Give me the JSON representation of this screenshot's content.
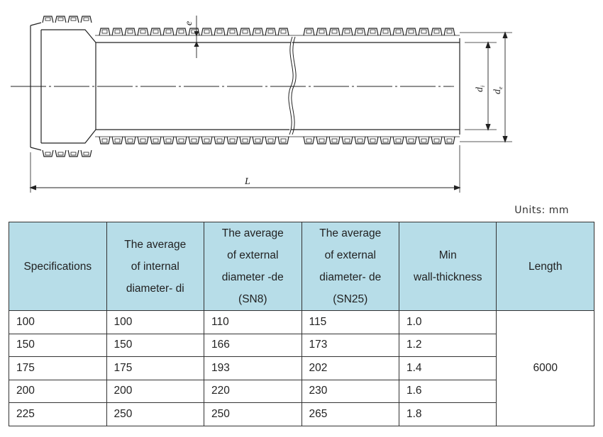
{
  "drawing": {
    "labels": {
      "wall": "e",
      "inner": "d",
      "inner_sub": "i",
      "outer": "d",
      "outer_sub": "e",
      "length": "L"
    }
  },
  "units": "Units: mm",
  "table": {
    "headers": [
      "Specifications",
      [
        "The average",
        "of internal",
        "diameter- di"
      ],
      [
        "The average",
        "of external",
        "diameter -de",
        "(SN8)"
      ],
      [
        "The average",
        "of external",
        "diameter- de",
        "(SN25)"
      ],
      [
        "Min",
        "wall-thickness"
      ],
      "Length"
    ],
    "rows": [
      [
        "100",
        "100",
        "110",
        "115",
        "1.0"
      ],
      [
        "150",
        "150",
        "166",
        "173",
        "1.2"
      ],
      [
        "175",
        "175",
        "193",
        "202",
        "1.4"
      ],
      [
        "200",
        "200",
        "220",
        "230",
        "1.6"
      ],
      [
        "225",
        "250",
        "250",
        "265",
        "1.8"
      ]
    ],
    "length_value": "6000",
    "header_color": "#b7dde8"
  }
}
